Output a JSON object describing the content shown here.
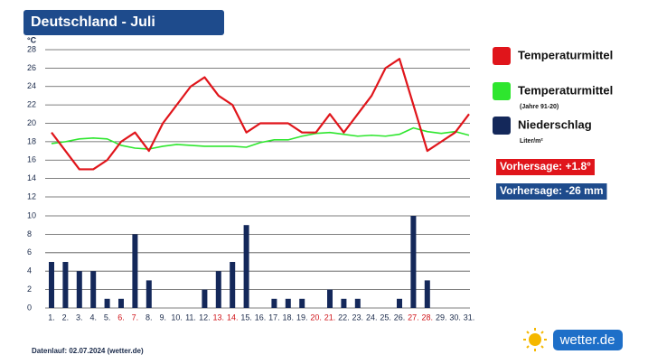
{
  "title": "Deutschland - Juli",
  "chart_data": [
    {
      "type": "line",
      "y_label": "°C",
      "ylim": [
        12,
        28
      ],
      "yticks": [
        12,
        14,
        16,
        18,
        20,
        22,
        24,
        26,
        28
      ],
      "grid": true,
      "series": [
        {
          "name": "Temperaturmittel",
          "color": "#e0151b",
          "values": [
            19,
            17,
            15,
            15,
            16,
            18,
            19,
            17,
            20,
            22,
            24,
            25,
            23,
            22,
            19,
            20,
            20,
            20,
            19,
            19,
            21,
            19,
            21,
            23,
            26,
            27,
            22,
            17,
            18,
            19,
            21
          ]
        },
        {
          "name": "Temperaturmittel",
          "note": "(Jahre 91-20)",
          "color": "#2ee62e",
          "values": [
            17.8,
            18,
            18.3,
            18.4,
            18.3,
            17.6,
            17.3,
            17.2,
            17.5,
            17.7,
            17.6,
            17.5,
            17.5,
            17.5,
            17.4,
            17.9,
            18.2,
            18.2,
            18.6,
            18.9,
            19,
            18.8,
            18.6,
            18.7,
            18.6,
            18.8,
            19.5,
            19.1,
            18.9,
            19.1,
            18.7
          ]
        }
      ]
    },
    {
      "type": "bar",
      "ylim": [
        0,
        10
      ],
      "yticks": [
        0,
        2,
        4,
        6,
        8,
        10
      ],
      "grid": true,
      "categories": [
        "1.",
        "2.",
        "3.",
        "4.",
        "5.",
        "6.",
        "7.",
        "8.",
        "9.",
        "10.",
        "11.",
        "12.",
        "13.",
        "14.",
        "15.",
        "16.",
        "17.",
        "18.",
        "19.",
        "20.",
        "21.",
        "22.",
        "23.",
        "24.",
        "25.",
        "26.",
        "27.",
        "28.",
        "29.",
        "30.",
        "31."
      ],
      "label_colors": [
        "#1a2a4a",
        "#1a2a4a",
        "#1a2a4a",
        "#1a2a4a",
        "#1a2a4a",
        "#d0141a",
        "#d0141a",
        "#1a2a4a",
        "#1a2a4a",
        "#1a2a4a",
        "#1a2a4a",
        "#1a2a4a",
        "#d0141a",
        "#d0141a",
        "#1a2a4a",
        "#1a2a4a",
        "#1a2a4a",
        "#1a2a4a",
        "#1a2a4a",
        "#d0141a",
        "#d0141a",
        "#1a2a4a",
        "#1a2a4a",
        "#1a2a4a",
        "#1a2a4a",
        "#1a2a4a",
        "#d0141a",
        "#d0141a",
        "#1a2a4a",
        "#1a2a4a",
        "#1a2a4a"
      ],
      "series": [
        {
          "name": "Niederschlag",
          "note": "Liter/m²",
          "color": "#14285a",
          "values": [
            5,
            5,
            4,
            4,
            1,
            1,
            8,
            3,
            0,
            0,
            0,
            2,
            4,
            5,
            9,
            0,
            1,
            1,
            1,
            0,
            2,
            1,
            1,
            0,
            0,
            1,
            10,
            3,
            0,
            0,
            0
          ]
        }
      ]
    }
  ],
  "forecasts": [
    {
      "text": "Vorhersage: +1.8°",
      "color": "#e0151b"
    },
    {
      "text": "Vorhersage: -26 mm",
      "color": "#1e4b8c"
    }
  ],
  "footer": "Datenlauf: 02.07.2024 (wetter.de)",
  "logo": "wetter.de"
}
